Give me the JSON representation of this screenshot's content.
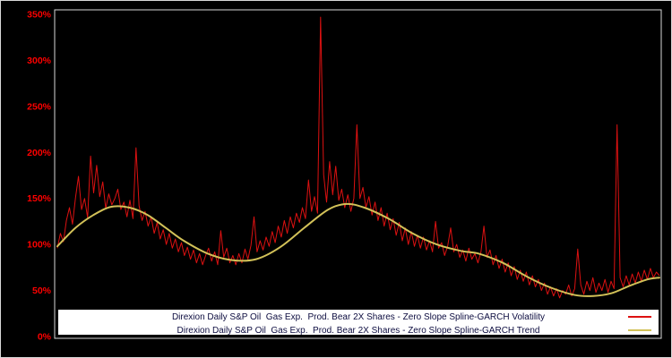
{
  "window": {
    "background": "#000000",
    "frame_border": "#d9d9d9"
  },
  "chart_data": {
    "type": "line",
    "title": "",
    "xlabel": "",
    "ylabel": "",
    "grid": false,
    "ylim": [
      0,
      350
    ],
    "x_range": [
      0,
      1
    ],
    "yticks": {
      "values": [
        0,
        50,
        100,
        150,
        200,
        250,
        300,
        350
      ],
      "labels": [
        "0%",
        "50%",
        "100%",
        "150%",
        "200%",
        "250%",
        "300%",
        "350%"
      ]
    },
    "axis_label_color": "#ff0000",
    "plot_border_color": "#d9d9d9",
    "legend_bg": "#ffffff",
    "legend_text_color": "#0d0d40",
    "legend_position": "bottom-inside",
    "series": [
      {
        "name": "Direxion Daily S&P Oil  Gas Exp.  Prod. Bear 2X Shares - Zero Slope Spline-GARCH Volatility",
        "type": "line-jagged",
        "color": "#dd1111",
        "width": 1,
        "values_pct": [
          96,
          112,
          103,
          126,
          140,
          122,
          151,
          174,
          138,
          150,
          129,
          196,
          156,
          186,
          152,
          168,
          139,
          155,
          143,
          150,
          160,
          138,
          146,
          130,
          148,
          128,
          205,
          142,
          126,
          136,
          120,
          130,
          112,
          124,
          106,
          116,
          100,
          112,
          96,
          106,
          92,
          102,
          88,
          97,
          84,
          94,
          80,
          90,
          78,
          88,
          96,
          82,
          92,
          78,
          115,
          86,
          96,
          80,
          88,
          78,
          90,
          80,
          95,
          84,
          99,
          130,
          92,
          104,
          94,
          108,
          98,
          114,
          102,
          120,
          108,
          126,
          112,
          130,
          118,
          134,
          124,
          140,
          128,
          170,
          136,
          152,
          134,
          347,
          176,
          146,
          190,
          154,
          185,
          148,
          160,
          140,
          154,
          136,
          150,
          230,
          150,
          162,
          140,
          152,
          132,
          146,
          126,
          140,
          120,
          134,
          116,
          128,
          110,
          124,
          104,
          118,
          100,
          114,
          98,
          110,
          96,
          108,
          94,
          104,
          92,
          125,
          96,
          102,
          88,
          98,
          118,
          92,
          100,
          86,
          94,
          82,
          96,
          84,
          90,
          80,
          92,
          120,
          86,
          94,
          78,
          88,
          74,
          84,
          70,
          80,
          66,
          76,
          62,
          72,
          60,
          70,
          56,
          66,
          54,
          62,
          50,
          58,
          46,
          54,
          44,
          52,
          42,
          50,
          46,
          56,
          44,
          52,
          95,
          56,
          46,
          60,
          50,
          64,
          48,
          58,
          50,
          62,
          48,
          60,
          52,
          230,
          64,
          54,
          66,
          56,
          68,
          58,
          70,
          60,
          72,
          62,
          74,
          64,
          70,
          66
        ]
      },
      {
        "name": "Direxion Daily S&P Oil  Gas Exp.  Prod. Bear 2X Shares - Zero Slope Spline-GARCH Trend",
        "type": "line-smooth",
        "color": "#d2c158",
        "width": 2,
        "x": [
          0,
          0.03,
          0.06,
          0.09,
          0.12,
          0.15,
          0.18,
          0.21,
          0.25,
          0.29,
          0.33,
          0.37,
          0.41,
          0.45,
          0.48,
          0.51,
          0.55,
          0.59,
          0.63,
          0.67,
          0.7,
          0.74,
          0.78,
          0.82,
          0.86,
          0.89,
          0.92,
          0.95,
          0.98,
          1.0
        ],
        "values_pct": [
          98,
          118,
          132,
          141,
          140,
          132,
          118,
          104,
          90,
          83,
          84,
          97,
          118,
          138,
          144,
          140,
          128,
          112,
          100,
          93,
          90,
          80,
          65,
          53,
          45,
          44,
          47,
          55,
          62,
          64
        ]
      }
    ]
  }
}
